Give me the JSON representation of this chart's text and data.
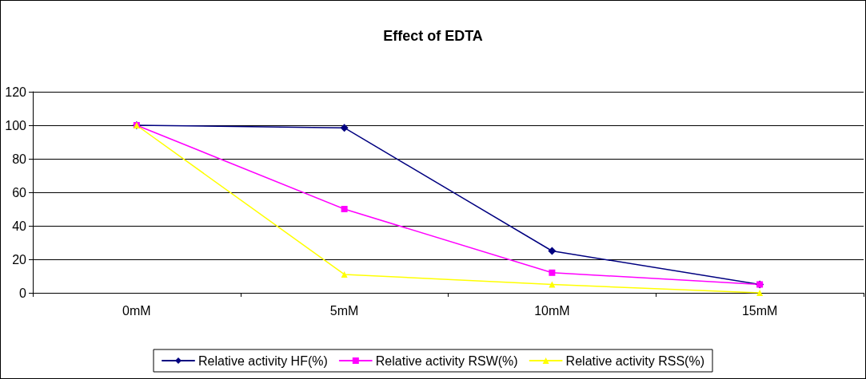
{
  "chart_data": {
    "type": "line",
    "title": "Effect of EDTA",
    "categories": [
      "0mM",
      "5mM",
      "10mM",
      "15mM"
    ],
    "series": [
      {
        "name": "Relative activity HF(%)",
        "color": "#000080",
        "marker": "diamond",
        "values": [
          100,
          98.5,
          25,
          5
        ]
      },
      {
        "name": "Relative activity RSW(%)",
        "color": "#ff00ff",
        "marker": "square",
        "values": [
          100,
          50,
          12,
          5
        ]
      },
      {
        "name": "Relative activity RSS(%)",
        "color": "#ffff00",
        "marker": "triangle",
        "values": [
          100,
          11,
          5,
          0
        ]
      }
    ],
    "ylim": [
      0,
      120
    ],
    "yticks": [
      0,
      20,
      40,
      60,
      80,
      100,
      120
    ],
    "grid": "y",
    "legend": "bottom"
  }
}
